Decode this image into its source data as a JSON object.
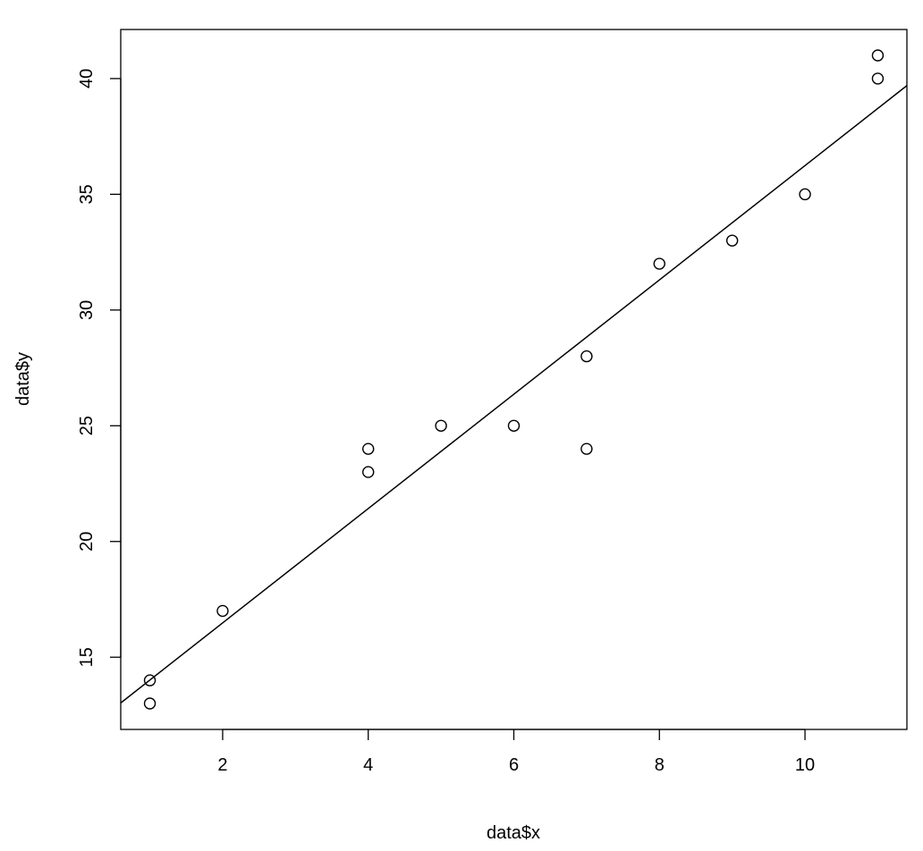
{
  "chart_data": {
    "type": "scatter",
    "title": "",
    "xlabel": "data$x",
    "ylabel": "data$y",
    "xlim": [
      0.6,
      11.4
    ],
    "ylim": [
      11.88,
      42.12
    ],
    "xticks": [
      2,
      4,
      6,
      8,
      10
    ],
    "yticks": [
      15,
      20,
      25,
      30,
      35,
      40
    ],
    "grid": false,
    "legend": "none",
    "marker": "open-circle",
    "colors": {
      "points": "#000000",
      "line": "#000000"
    },
    "points": [
      {
        "x": 1,
        "y": 14
      },
      {
        "x": 1,
        "y": 13
      },
      {
        "x": 2,
        "y": 17
      },
      {
        "x": 4,
        "y": 24
      },
      {
        "x": 4,
        "y": 23
      },
      {
        "x": 5,
        "y": 25
      },
      {
        "x": 6,
        "y": 25
      },
      {
        "x": 7,
        "y": 28
      },
      {
        "x": 7,
        "y": 24
      },
      {
        "x": 8,
        "y": 32
      },
      {
        "x": 9,
        "y": 33
      },
      {
        "x": 10,
        "y": 35
      },
      {
        "x": 11,
        "y": 40
      },
      {
        "x": 11,
        "y": 41
      }
    ],
    "fit_line": {
      "intercept": 11.543,
      "slope": 2.4697
    }
  }
}
